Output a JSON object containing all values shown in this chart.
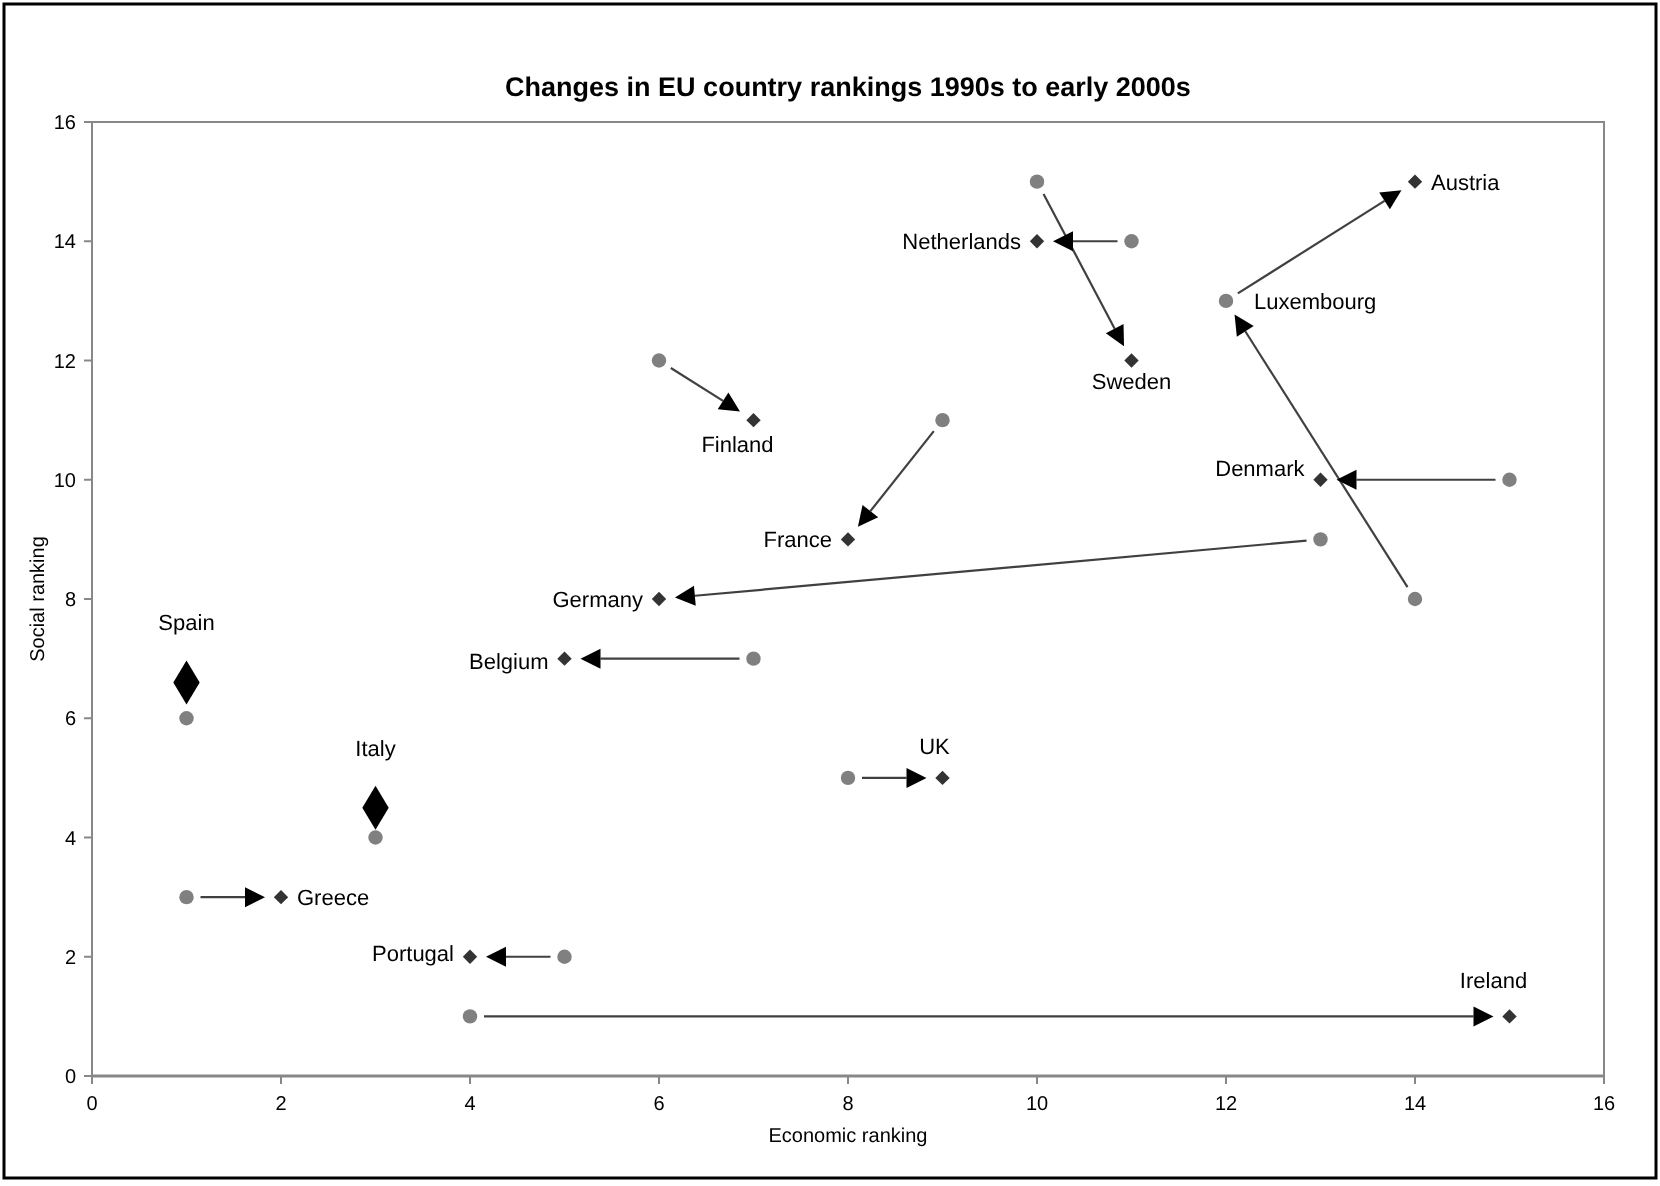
{
  "chart_data": {
    "type": "scatter",
    "title": "Changes in EU country rankings 1990s to early 2000s",
    "xlabel": "Economic ranking",
    "ylabel": "Social ranking",
    "xlim": [
      0,
      16
    ],
    "ylim": [
      0,
      16
    ],
    "xticks": [
      0,
      2,
      4,
      6,
      8,
      10,
      12,
      14,
      16
    ],
    "yticks": [
      0,
      2,
      4,
      6,
      8,
      10,
      12,
      14,
      16
    ],
    "grid": false,
    "legend": false,
    "series": [
      {
        "type": "scatter",
        "color": "#808080",
        "marker": "circle",
        "x": [
          6,
          10,
          11,
          12,
          14,
          9,
          15,
          13,
          7,
          1,
          3,
          1,
          5,
          8,
          4
        ],
        "values": [
          12,
          15,
          14,
          13,
          8,
          11,
          10,
          9,
          7,
          6,
          4,
          3,
          2,
          5,
          1
        ]
      },
      {
        "type": "scatter",
        "color": "#333333",
        "marker": "diamond",
        "x": [
          7,
          11,
          10,
          14,
          8,
          13,
          6,
          5,
          2,
          4,
          9,
          15
        ],
        "values": [
          11,
          12,
          14,
          15,
          9,
          10,
          8,
          7,
          3,
          2,
          5,
          1
        ]
      },
      {
        "type": "bubble",
        "color": "#000000",
        "marker": "diamond",
        "x": [
          1,
          3
        ],
        "values": [
          6.6,
          4.5
        ],
        "sizes": [
          1,
          1
        ]
      }
    ],
    "annotations": [
      {
        "text": "Austria",
        "x": 14,
        "y": 15
      },
      {
        "text": "Netherlands",
        "x": 10,
        "y": 14
      },
      {
        "text": "Sweden",
        "x": 11,
        "y": 12
      },
      {
        "text": "Luxembourg",
        "x": 12,
        "y": 13
      },
      {
        "text": "Finland",
        "x": 7,
        "y": 11
      },
      {
        "text": "France",
        "x": 8,
        "y": 9
      },
      {
        "text": "Denmark",
        "x": 13,
        "y": 10
      },
      {
        "text": "Germany",
        "x": 6,
        "y": 8
      },
      {
        "text": "Belgium",
        "x": 5,
        "y": 7
      },
      {
        "text": "Spain",
        "x": 1,
        "y": 6.6
      },
      {
        "text": "Italy",
        "x": 3,
        "y": 4.5
      },
      {
        "text": "Greece",
        "x": 2,
        "y": 3
      },
      {
        "text": "Portugal",
        "x": 4,
        "y": 2
      },
      {
        "text": "UK",
        "x": 9,
        "y": 5
      },
      {
        "text": "Ireland",
        "x": 15,
        "y": 1
      }
    ]
  }
}
